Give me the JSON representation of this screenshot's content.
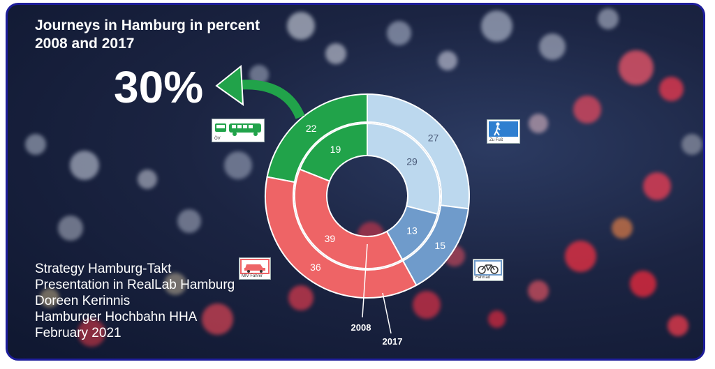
{
  "title_line1": "Journeys in Hamburg in percent",
  "title_line2": "2008 and 2017",
  "highlight_value": "30%",
  "credits": [
    "Strategy Hamburg-Takt",
    "Presentation in RealLab Hamburg",
    "Doreen Kerinnis",
    "Hamburger Hochbahn HHA",
    "February 2021"
  ],
  "icons": {
    "public_transport": {
      "name": "bus-tram-icon",
      "label": "ÖV"
    },
    "walking": {
      "name": "pedestrian-icon",
      "label": "Zu Fuß"
    },
    "car": {
      "name": "car-icon",
      "label": "MIV Fahrer"
    },
    "bicycle": {
      "name": "bicycle-icon",
      "label": "Fahrrad"
    }
  },
  "colors": {
    "public_transport": "#21a34a",
    "walking": "#bcd8ee",
    "bicycle": "#6f9bcb",
    "car": "#ee6466",
    "frame": "#1d1d9a"
  },
  "chart_data": {
    "type": "pie",
    "title": "Journeys in Hamburg in percent 2008 and 2017",
    "categories": [
      "ÖV",
      "Zu Fuß",
      "Fahrrad",
      "MIV Fahrer"
    ],
    "series": [
      {
        "name": "2008",
        "values": [
          19,
          29,
          13,
          39
        ]
      },
      {
        "name": "2017",
        "values": [
          22,
          27,
          15,
          36
        ]
      }
    ],
    "ring_labels": [
      "2008",
      "2017"
    ]
  }
}
